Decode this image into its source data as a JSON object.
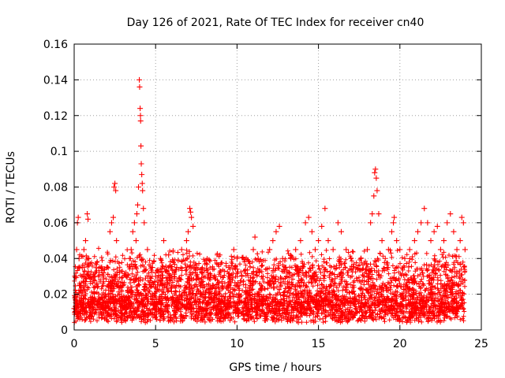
{
  "chart_data": {
    "type": "scatter",
    "title": "Day 126 of 2021, Rate Of TEC Index for receiver cn40",
    "xlabel": "GPS time / hours",
    "ylabel": "ROTI / TECUs",
    "xlim": [
      0,
      25
    ],
    "ylim": [
      0,
      0.16
    ],
    "xticks": [
      0,
      5,
      10,
      15,
      20,
      25
    ],
    "xtick_labels": [
      "0",
      "5",
      "10",
      "15",
      "20",
      "25"
    ],
    "yticks": [
      0,
      0.02,
      0.04,
      0.06,
      0.08,
      0.1,
      0.12,
      0.14,
      0.16
    ],
    "ytick_labels": [
      "0",
      "0.02",
      "0.04",
      "0.06",
      "0.08",
      "0.1",
      "0.12",
      "0.14",
      "0.16"
    ],
    "grid": true,
    "marker": "+",
    "color": "#ff0000",
    "series": [
      {
        "name": "ROTI",
        "points": [
          [
            0.0,
            0.012
          ],
          [
            0.05,
            0.018
          ],
          [
            0.1,
            0.03
          ],
          [
            0.15,
            0.045
          ],
          [
            0.2,
            0.06
          ],
          [
            0.25,
            0.063
          ],
          [
            0.3,
            0.04
          ],
          [
            0.35,
            0.025
          ],
          [
            0.4,
            0.015
          ],
          [
            0.5,
            0.035
          ],
          [
            0.6,
            0.045
          ],
          [
            0.7,
            0.05
          ],
          [
            0.8,
            0.065
          ],
          [
            0.85,
            0.062
          ],
          [
            0.9,
            0.04
          ],
          [
            1.0,
            0.03
          ],
          [
            1.2,
            0.028
          ],
          [
            1.5,
            0.03
          ],
          [
            1.8,
            0.032
          ],
          [
            2.0,
            0.035
          ],
          [
            2.2,
            0.055
          ],
          [
            2.3,
            0.06
          ],
          [
            2.4,
            0.063
          ],
          [
            2.45,
            0.08
          ],
          [
            2.5,
            0.082
          ],
          [
            2.55,
            0.078
          ],
          [
            2.6,
            0.05
          ],
          [
            2.8,
            0.02
          ],
          [
            3.0,
            0.025
          ],
          [
            3.2,
            0.03
          ],
          [
            3.4,
            0.04
          ],
          [
            3.5,
            0.045
          ],
          [
            3.6,
            0.055
          ],
          [
            3.7,
            0.06
          ],
          [
            3.8,
            0.05
          ],
          [
            3.85,
            0.065
          ],
          [
            3.9,
            0.07
          ],
          [
            3.95,
            0.08
          ],
          [
            4.0,
            0.14
          ],
          [
            4.02,
            0.136
          ],
          [
            4.05,
            0.124
          ],
          [
            4.07,
            0.12
          ],
          [
            4.08,
            0.117
          ],
          [
            4.1,
            0.103
          ],
          [
            4.12,
            0.093
          ],
          [
            4.15,
            0.087
          ],
          [
            4.18,
            0.082
          ],
          [
            4.2,
            0.078
          ],
          [
            4.25,
            0.068
          ],
          [
            4.3,
            0.06
          ],
          [
            4.5,
            0.045
          ],
          [
            4.8,
            0.035
          ],
          [
            5.0,
            0.03
          ],
          [
            5.3,
            0.04
          ],
          [
            5.5,
            0.05
          ],
          [
            5.8,
            0.042
          ],
          [
            6.0,
            0.03
          ],
          [
            6.3,
            0.035
          ],
          [
            6.6,
            0.045
          ],
          [
            6.9,
            0.05
          ],
          [
            7.0,
            0.055
          ],
          [
            7.1,
            0.068
          ],
          [
            7.15,
            0.066
          ],
          [
            7.2,
            0.063
          ],
          [
            7.3,
            0.058
          ],
          [
            7.5,
            0.035
          ],
          [
            7.8,
            0.025
          ],
          [
            8.0,
            0.02
          ],
          [
            8.5,
            0.025
          ],
          [
            9.0,
            0.03
          ],
          [
            9.5,
            0.035
          ],
          [
            9.8,
            0.045
          ],
          [
            10.0,
            0.04
          ],
          [
            10.3,
            0.03
          ],
          [
            10.6,
            0.02
          ],
          [
            11.0,
            0.045
          ],
          [
            11.1,
            0.052
          ],
          [
            11.3,
            0.04
          ],
          [
            11.6,
            0.03
          ],
          [
            12.0,
            0.045
          ],
          [
            12.2,
            0.05
          ],
          [
            12.4,
            0.055
          ],
          [
            12.6,
            0.058
          ],
          [
            12.8,
            0.04
          ],
          [
            13.0,
            0.035
          ],
          [
            13.3,
            0.04
          ],
          [
            13.6,
            0.045
          ],
          [
            13.9,
            0.05
          ],
          [
            14.2,
            0.06
          ],
          [
            14.4,
            0.063
          ],
          [
            14.6,
            0.055
          ],
          [
            14.8,
            0.045
          ],
          [
            15.0,
            0.05
          ],
          [
            15.2,
            0.058
          ],
          [
            15.4,
            0.068
          ],
          [
            15.6,
            0.05
          ],
          [
            15.9,
            0.045
          ],
          [
            16.2,
            0.06
          ],
          [
            16.4,
            0.055
          ],
          [
            16.7,
            0.045
          ],
          [
            17.0,
            0.04
          ],
          [
            17.3,
            0.035
          ],
          [
            17.6,
            0.04
          ],
          [
            18.0,
            0.045
          ],
          [
            18.2,
            0.06
          ],
          [
            18.3,
            0.065
          ],
          [
            18.4,
            0.075
          ],
          [
            18.45,
            0.088
          ],
          [
            18.5,
            0.09
          ],
          [
            18.55,
            0.085
          ],
          [
            18.6,
            0.078
          ],
          [
            18.7,
            0.065
          ],
          [
            18.9,
            0.05
          ],
          [
            19.1,
            0.04
          ],
          [
            19.3,
            0.045
          ],
          [
            19.5,
            0.055
          ],
          [
            19.6,
            0.06
          ],
          [
            19.65,
            0.063
          ],
          [
            19.8,
            0.05
          ],
          [
            20.0,
            0.045
          ],
          [
            20.3,
            0.04
          ],
          [
            20.6,
            0.045
          ],
          [
            20.9,
            0.05
          ],
          [
            21.1,
            0.055
          ],
          [
            21.3,
            0.06
          ],
          [
            21.5,
            0.068
          ],
          [
            21.7,
            0.06
          ],
          [
            21.9,
            0.05
          ],
          [
            22.1,
            0.055
          ],
          [
            22.3,
            0.058
          ],
          [
            22.5,
            0.045
          ],
          [
            22.7,
            0.05
          ],
          [
            22.9,
            0.06
          ],
          [
            23.1,
            0.065
          ],
          [
            23.3,
            0.055
          ],
          [
            23.5,
            0.045
          ],
          [
            23.7,
            0.05
          ],
          [
            23.8,
            0.063
          ],
          [
            23.9,
            0.06
          ],
          [
            24.0,
            0.045
          ]
        ]
      }
    ]
  }
}
